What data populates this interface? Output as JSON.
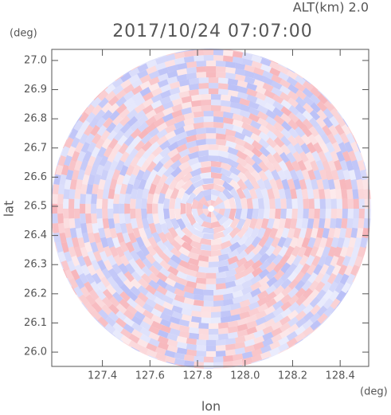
{
  "chart_data": {
    "type": "ppi",
    "title": "2017/10/24 07:07:00",
    "subtitle": "ALT(km) 2.0",
    "x_label": "lon",
    "y_label": "lat",
    "x_unit": "(deg)",
    "y_unit": "(deg)",
    "xlim": [
      127.187,
      128.52
    ],
    "ylim": [
      25.951,
      27.038
    ],
    "xticks": [
      127.4,
      127.6,
      127.8,
      {
        "value": 128.0,
        "label": "128.0"
      },
      128.2,
      128.4
    ],
    "yticks": [
      {
        "value": 26.0,
        "label": "26.0"
      },
      26.1,
      26.2,
      26.3,
      26.4,
      26.5,
      26.6,
      26.7,
      26.8,
      26.9,
      {
        "value": 27.0,
        "label": "27.0"
      }
    ]
  }
}
